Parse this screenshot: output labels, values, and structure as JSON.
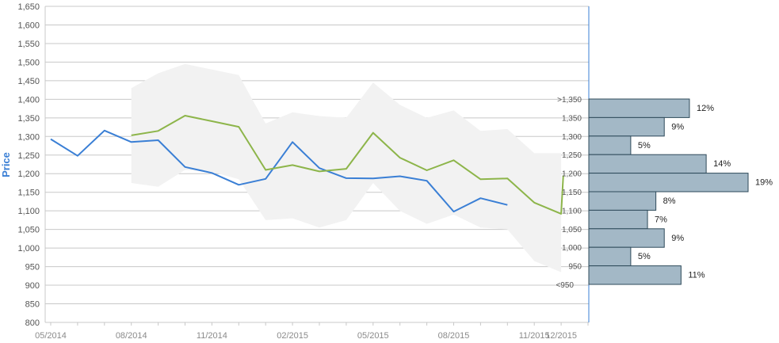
{
  "chart_data": {
    "type": "line",
    "ylabel": "Price",
    "ylim": [
      800,
      1650
    ],
    "y_ticks": [
      800,
      850,
      900,
      950,
      1000,
      1050,
      1100,
      1150,
      1200,
      1250,
      1300,
      1350,
      1400,
      1450,
      1500,
      1550,
      1600,
      1650
    ],
    "y_tick_labels": [
      "800",
      "850",
      "900",
      "950",
      "1,000",
      "1,050",
      "1,100",
      "1,150",
      "1,200",
      "1,250",
      "1,300",
      "1,350",
      "1,400",
      "1,450",
      "1,500",
      "1,550",
      "1,600",
      "1,650"
    ],
    "x_tick_labels": [
      "05/2014",
      "08/2014",
      "11/2014",
      "02/2015",
      "05/2015",
      "08/2015",
      "11/2015",
      "12/2015"
    ],
    "grid": true,
    "series": [
      {
        "color": "#3a7fd5",
        "points": [
          [
            "05/2014",
            1293
          ],
          [
            "06/2014",
            1248
          ],
          [
            "07/2014",
            1316
          ],
          [
            "08/2014",
            1285
          ],
          [
            "09/2014",
            1290
          ],
          [
            "10/2014",
            1218
          ],
          [
            "11/2014",
            1202
          ],
          [
            "12/2014",
            1170
          ],
          [
            "01/2015",
            1186
          ],
          [
            "02/2015",
            1285
          ],
          [
            "03/2015",
            1215
          ],
          [
            "04/2015",
            1188
          ],
          [
            "05/2015",
            1187
          ],
          [
            "06/2015",
            1193
          ],
          [
            "07/2015",
            1181
          ],
          [
            "08/2015",
            1098
          ],
          [
            "09/2015",
            1134
          ],
          [
            "10/2015",
            1116
          ]
        ]
      },
      {
        "color": "#8db54a",
        "points": [
          [
            "08/2014",
            1303
          ],
          [
            "09/2014",
            1315
          ],
          [
            "10/2014",
            1356
          ],
          [
            "11/2014",
            1341
          ],
          [
            "12/2014",
            1326
          ],
          [
            "01/2015",
            1210
          ],
          [
            "02/2015",
            1223
          ],
          [
            "03/2015",
            1206
          ],
          [
            "04/2015",
            1213
          ],
          [
            "05/2015",
            1310
          ],
          [
            "06/2015",
            1243
          ],
          [
            "07/2015",
            1209
          ],
          [
            "08/2015",
            1236
          ],
          [
            "09/2015",
            1185
          ],
          [
            "10/2015",
            1187
          ],
          [
            "11/2015",
            1122
          ],
          [
            "12/2015",
            1092
          ],
          [
            "12/2015 end",
            1195
          ]
        ]
      }
    ],
    "range_band": {
      "color": "#f2f2f2",
      "points": [
        [
          "08/2014",
          1430,
          1175
        ],
        [
          "09/2014",
          1470,
          1165
        ],
        [
          "10/2014",
          1495,
          1210
        ],
        [
          "11/2014",
          1480,
          1205
        ],
        [
          "12/2014",
          1465,
          1185
        ],
        [
          "01/2015",
          1335,
          1075
        ],
        [
          "02/2015",
          1365,
          1080
        ],
        [
          "03/2015",
          1355,
          1055
        ],
        [
          "04/2015",
          1350,
          1075
        ],
        [
          "05/2015",
          1445,
          1175
        ],
        [
          "06/2015",
          1385,
          1100
        ],
        [
          "07/2015",
          1350,
          1065
        ],
        [
          "08/2015",
          1370,
          1090
        ],
        [
          "09/2015",
          1315,
          1055
        ],
        [
          "10/2015",
          1320,
          1050
        ],
        [
          "11/2015",
          1255,
          965
        ],
        [
          "12/2015",
          1255,
          935
        ]
      ]
    },
    "distribution": {
      "color": "#a3b8c6",
      "bins": [
        {
          "label": ">1,350",
          "value": 12,
          "pct": "12%"
        },
        {
          "label": "1,350",
          "value": 9,
          "pct": "9%"
        },
        {
          "label": "1,300",
          "value": 5,
          "pct": "5%"
        },
        {
          "label": "1,250",
          "value": 14,
          "pct": "14%"
        },
        {
          "label": "1,200",
          "value": 19,
          "pct": "19%"
        },
        {
          "label": "1,150",
          "value": 8,
          "pct": "8%"
        },
        {
          "label": "1,100",
          "value": 7,
          "pct": "7%"
        },
        {
          "label": "1,050",
          "value": 9,
          "pct": "9%"
        },
        {
          "label": "1,000",
          "value": 5,
          "pct": "5%"
        },
        {
          "label": "950",
          "value": 11,
          "pct": "11%"
        }
      ],
      "bottom_label": "<950"
    }
  }
}
